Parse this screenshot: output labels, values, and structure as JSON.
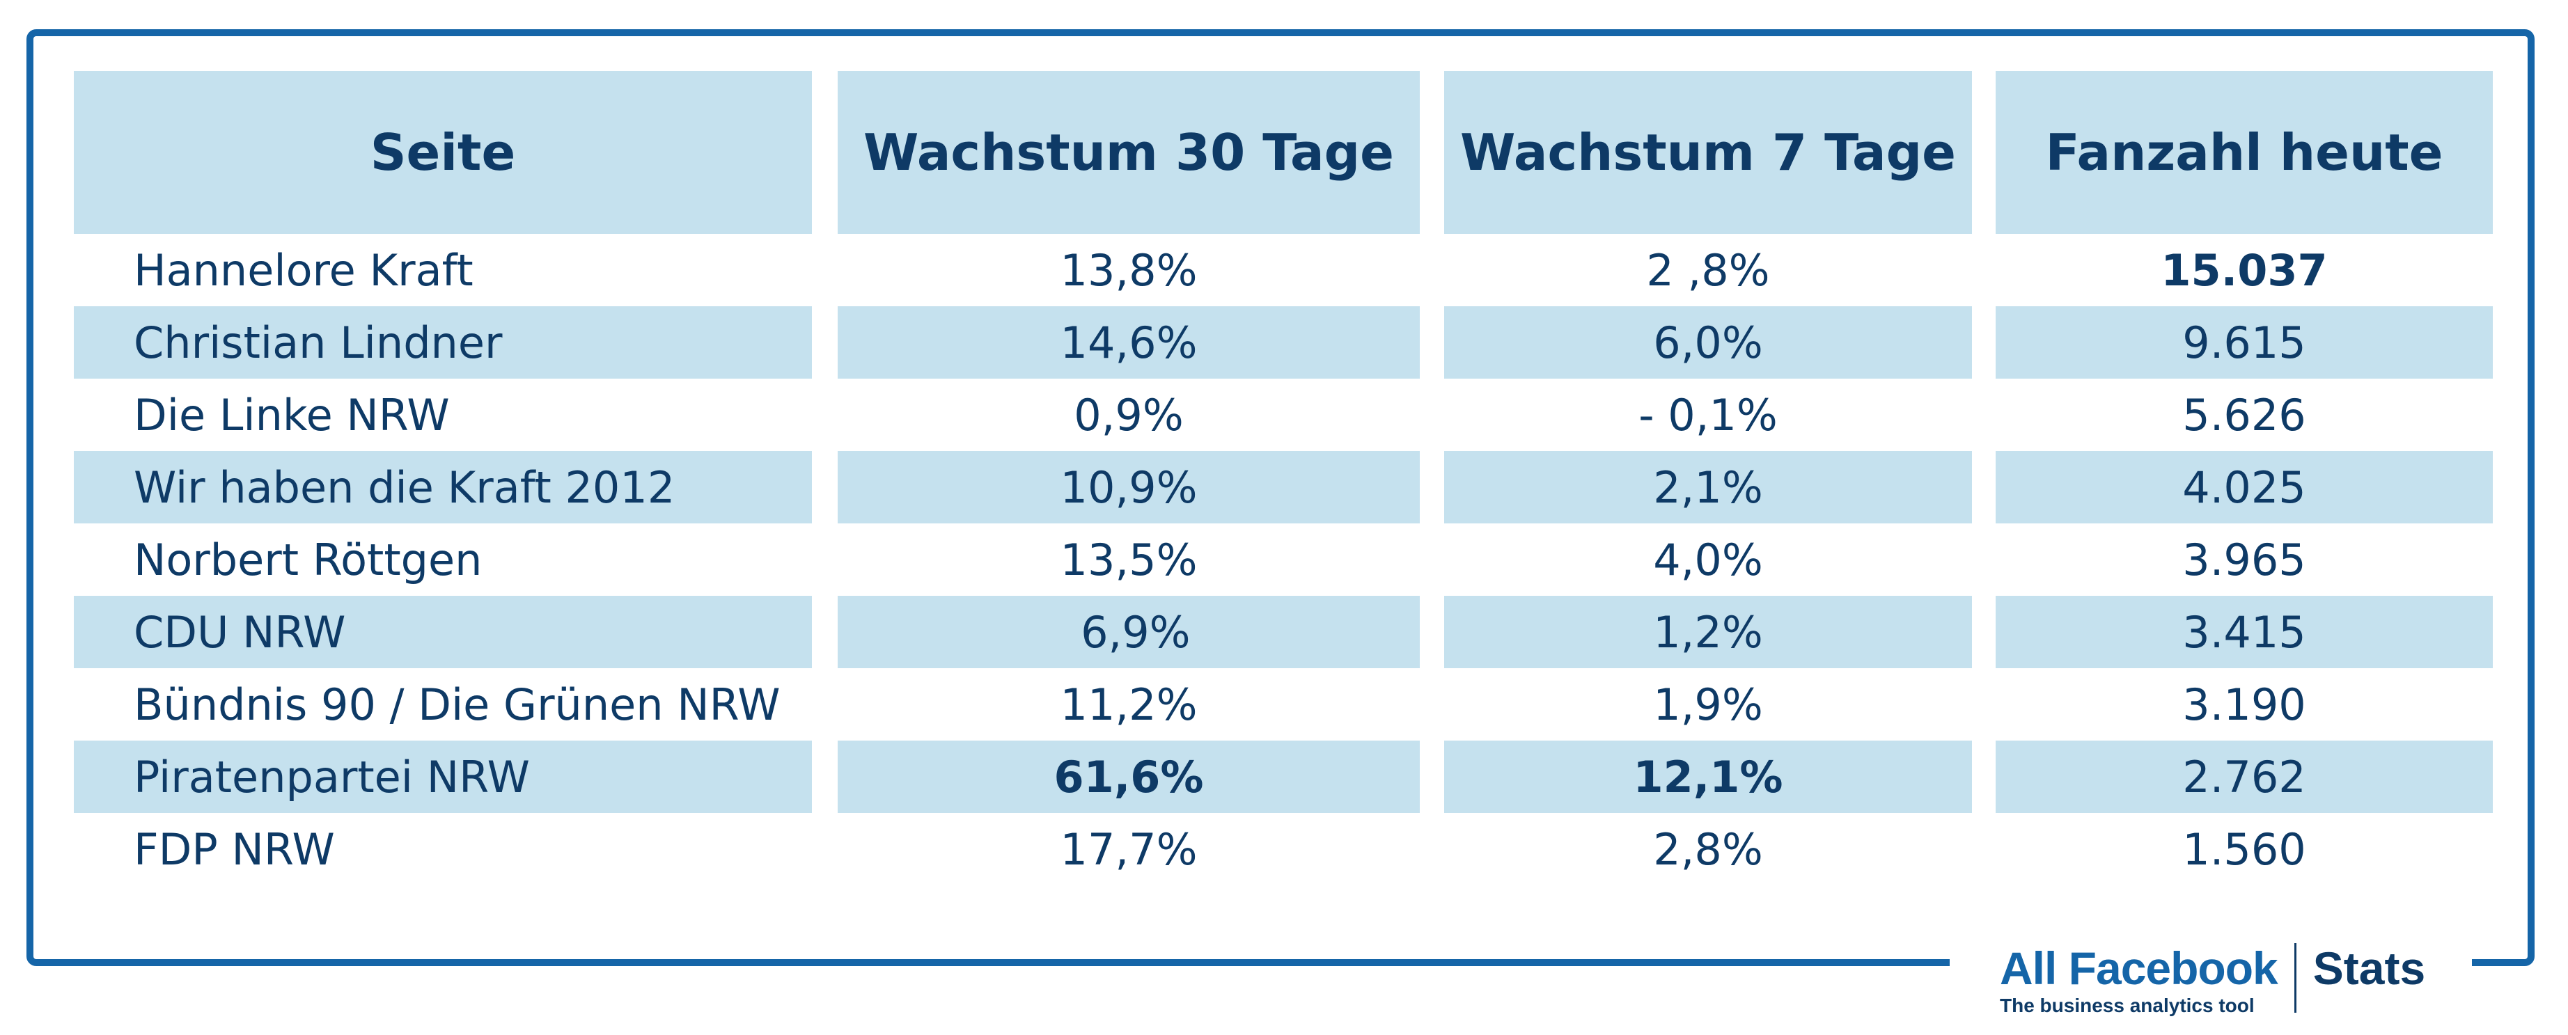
{
  "table": {
    "headers": [
      "Seite",
      "Wachstum 30 Tage",
      "Wachstum 7 Tage",
      "Fanzahl heute"
    ],
    "rows": [
      {
        "page": "Hannelore Kraft",
        "growth30": "13,8%",
        "growth7": "2 ,8%",
        "fans": "15.037"
      },
      {
        "page": "Christian Lindner",
        "growth30": "14,6%",
        "growth7": "6,0%",
        "fans": "9.615"
      },
      {
        "page": "Die Linke NRW",
        "growth30": "0,9%",
        "growth7": "- 0,1%",
        "fans": "5.626"
      },
      {
        "page": "Wir haben die Kraft 2012",
        "growth30": "10,9%",
        "growth7": "2,1%",
        "fans": "4.025"
      },
      {
        "page": "Norbert Röttgen",
        "growth30": "13,5%",
        "growth7": "4,0%",
        "fans": "3.965"
      },
      {
        "page": "CDU NRW",
        "growth30": " 6,9%",
        "growth7": "1,2%",
        "fans": "3.415"
      },
      {
        "page": "Bündnis 90 / Die Grünen NRW",
        "growth30": "11,2%",
        "growth7": "1,9%",
        "fans": "3.190"
      },
      {
        "page": "Piratenpartei NRW",
        "growth30": "61,6%",
        "growth7": "12,1%",
        "fans": "2.762"
      },
      {
        "page": "FDP NRW",
        "growth30": "17,7%",
        "growth7": "2,8%",
        "fans": "1.560"
      }
    ]
  },
  "logo": {
    "brand": "All Facebook",
    "tagline": "The business analytics tool",
    "product": "Stats"
  },
  "colors": {
    "frame": "#1565a8",
    "row_shade": "#c5e1ee",
    "text": "#0e3a66"
  }
}
